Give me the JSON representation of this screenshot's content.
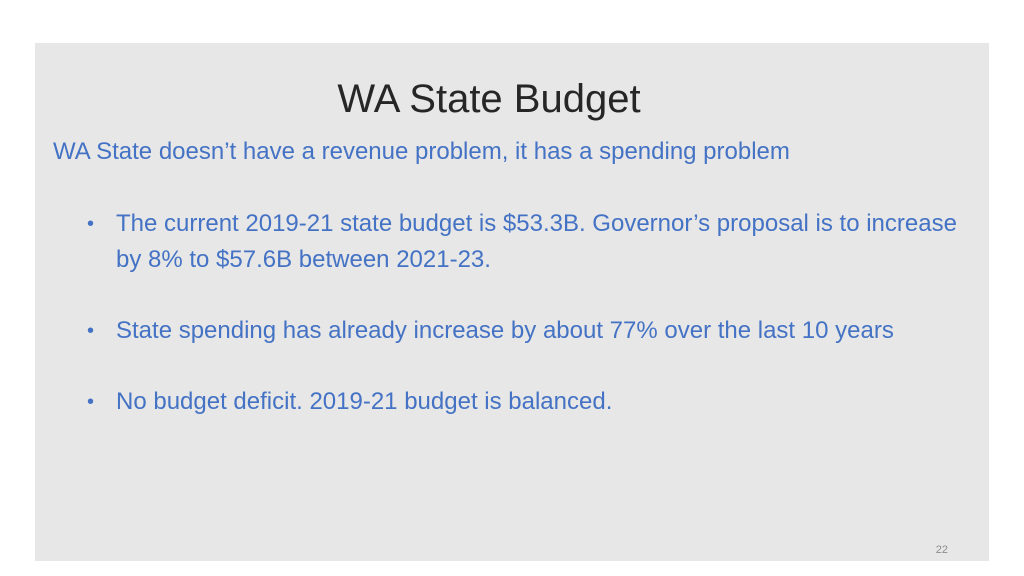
{
  "slide": {
    "title": "WA State Budget",
    "subtitle": "WA State doesn’t have a revenue problem, it has a spending problem",
    "bullets": [
      "The current 2019-21 state budget is $53.3B. Governor’s proposal is to increase by 8% to $57.6B between 2021-23.",
      "State spending has already increase by about 77% over the last 10 years",
      "No budget deficit. 2019-21 budget is balanced."
    ],
    "bullet_glyph": "•",
    "page_number": "22"
  },
  "colors": {
    "background": "#e7e7e7",
    "title": "#262626",
    "body_text": "#4472c4"
  }
}
